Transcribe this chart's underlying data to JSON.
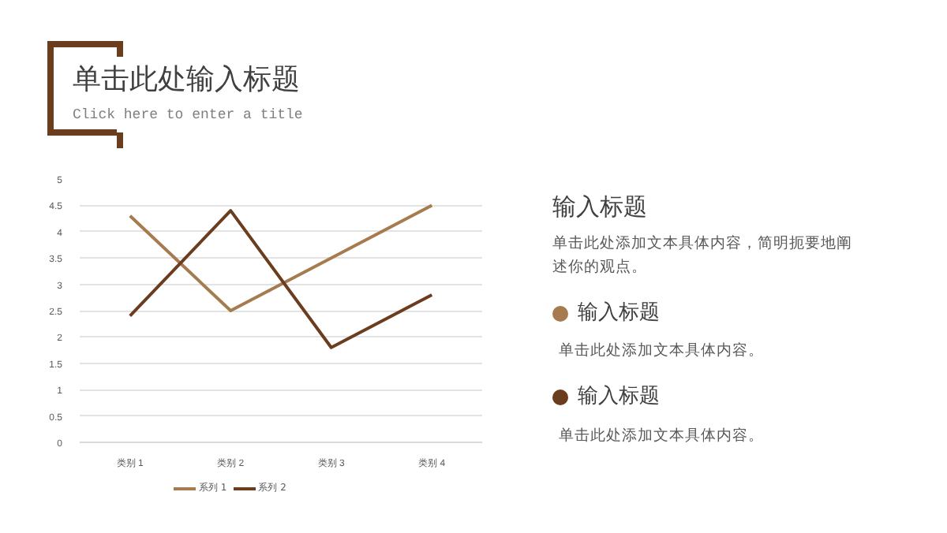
{
  "chart_data": {
    "type": "line",
    "title": "单击此处输入标题",
    "subtitle": "Click here to enter a title",
    "categories": [
      "类别 1",
      "类别 2",
      "类别 3",
      "类别 4"
    ],
    "series": [
      {
        "name": "系列 1",
        "color": "#a67b4f",
        "values": [
          4.3,
          2.5,
          3.5,
          4.5
        ]
      },
      {
        "name": "系列 2",
        "color": "#6b3d1f",
        "values": [
          2.4,
          4.4,
          1.8,
          2.8
        ]
      }
    ],
    "ylim": [
      0,
      5
    ],
    "yticks": [
      0,
      0.5,
      1,
      1.5,
      2,
      2.5,
      3,
      3.5,
      4,
      4.5,
      5
    ],
    "grid": "y",
    "legend": "bottom",
    "marker": "none",
    "line_style": "solid",
    "annotations": [
      "输入标题",
      "单击此处添加文本具体内容，简明扼要地阐述你的观点。",
      "输入标题",
      "单击此处添加文本具体内容。",
      "输入标题",
      "单击此处添加文本具体内容。"
    ]
  }
}
